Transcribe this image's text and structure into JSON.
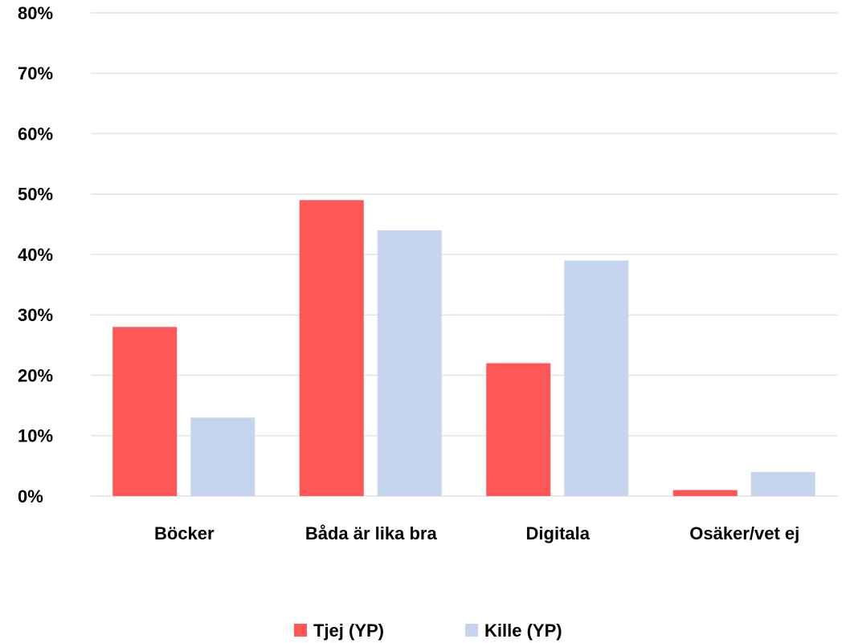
{
  "chart_data": {
    "type": "bar",
    "categories": [
      "Böcker",
      "Båda är lika bra",
      "Digitala",
      "Osäker/vet ej"
    ],
    "series": [
      {
        "name": "Tjej (YP)",
        "color": "#ff5757",
        "values": [
          28,
          49,
          22,
          1
        ]
      },
      {
        "name": "Kille (YP)",
        "color": "#c6d5ee",
        "values": [
          13,
          44,
          39,
          4
        ]
      }
    ],
    "ylim": [
      0,
      80
    ],
    "yticks": [
      {
        "value": 0,
        "label": "0%"
      },
      {
        "value": 10,
        "label": "10%"
      },
      {
        "value": 20,
        "label": "20%"
      },
      {
        "value": 30,
        "label": "30%"
      },
      {
        "value": 40,
        "label": "40%"
      },
      {
        "value": 50,
        "label": "50%"
      },
      {
        "value": 60,
        "label": "60%"
      },
      {
        "value": 70,
        "label": "70%"
      },
      {
        "value": 80,
        "label": "80%"
      }
    ],
    "grid": true,
    "legend": "bottom"
  }
}
